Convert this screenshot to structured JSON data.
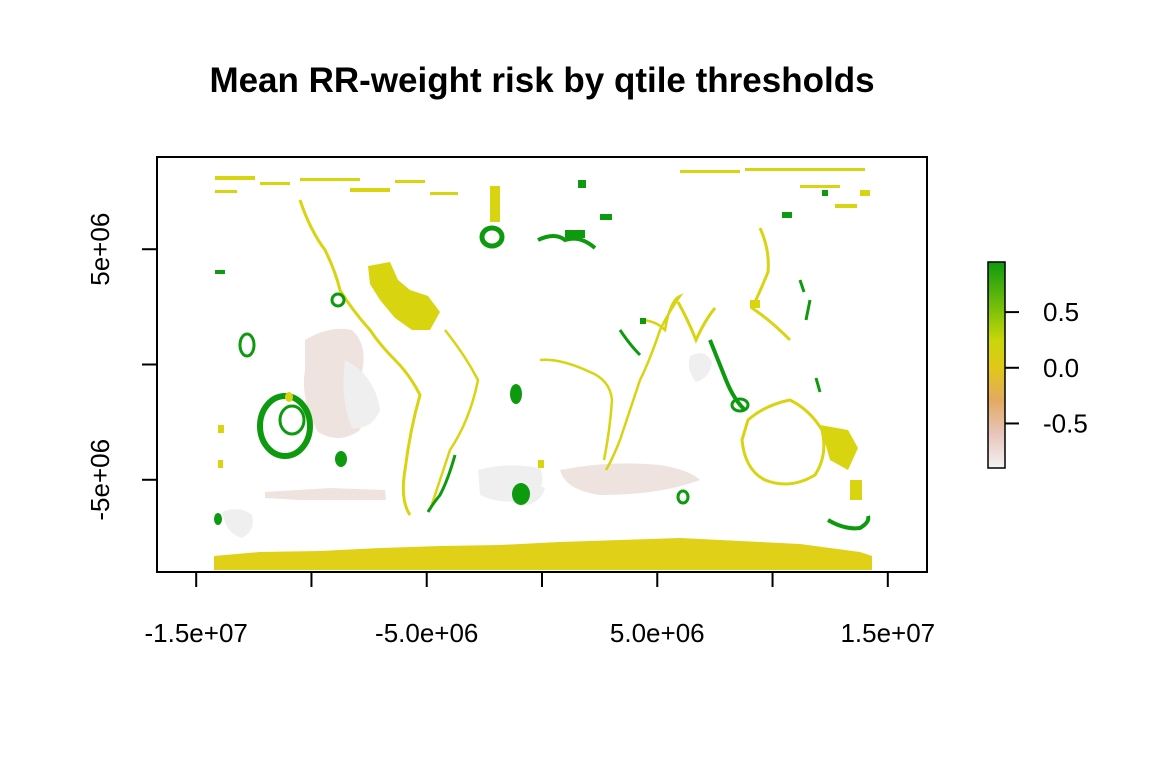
{
  "plot": {
    "title": "Mean RR-weight risk by qtile thresholds",
    "x_axis": {
      "ticks": [
        -15000000,
        -10000000,
        -5000000,
        0,
        5000000,
        10000000,
        15000000
      ],
      "labels": [
        {
          "value": -15000000,
          "text": "-1.5e+07"
        },
        {
          "value": -5000000,
          "text": "-5.0e+06"
        },
        {
          "value": 5000000,
          "text": "5.0e+06"
        },
        {
          "value": 15000000,
          "text": "1.5e+07"
        }
      ],
      "range": [
        -16700000,
        16700000
      ]
    },
    "y_axis": {
      "ticks": [
        5000000,
        0,
        -5000000
      ],
      "labels": [
        {
          "value": 5000000,
          "text": "5e+06"
        },
        {
          "value": -5000000,
          "text": "-5e+06"
        }
      ],
      "range": [
        -9000000,
        9000000
      ]
    },
    "legend": {
      "position": "right",
      "range": [
        -0.9,
        0.95
      ],
      "ticks": [
        {
          "value": 0.5,
          "text": "0.5"
        },
        {
          "value": 0.0,
          "text": "0.0"
        },
        {
          "value": -0.5,
          "text": "-0.5"
        }
      ],
      "colors": [
        "#f2f2f2",
        "#e8c4b8",
        "#e2aa60",
        "#e0c818",
        "#c8d60a",
        "#7cc20a",
        "#0e9a0e"
      ]
    },
    "colors": {
      "high_positive": "#0e9a0e",
      "near_zero": "#d8d410",
      "southern_band": "#e0d018",
      "negative": "#efe2de",
      "very_negative": "#eeeeee"
    }
  }
}
